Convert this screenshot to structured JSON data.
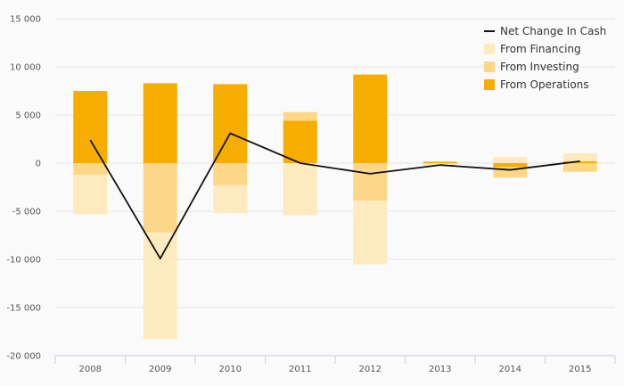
{
  "chart_data": {
    "type": "bar",
    "stacked": true,
    "categories": [
      "2008",
      "2009",
      "2010",
      "2011",
      "2012",
      "2013",
      "2014",
      "2015"
    ],
    "series": [
      {
        "name": "From Operations",
        "type": "bar",
        "color": "#f7ad00",
        "values": [
          7500,
          8300,
          8200,
          4400,
          9200,
          150,
          -400,
          200
        ]
      },
      {
        "name": "From Investing",
        "type": "bar",
        "color": "#fdd688",
        "values": [
          -1200,
          -7200,
          -2300,
          900,
          -3900,
          -50,
          -1100,
          -900
        ]
      },
      {
        "name": "From Financing",
        "type": "bar",
        "color": "#fdeabe",
        "values": [
          -4100,
          -11100,
          -2900,
          -5400,
          -6600,
          -250,
          650,
          800
        ]
      },
      {
        "name": "Net Change In Cash",
        "type": "line",
        "color": "#111111",
        "values": [
          2400,
          -9900,
          3100,
          0,
          -1100,
          -200,
          -700,
          200
        ]
      }
    ],
    "ylim": [
      -20000,
      15000
    ],
    "yticks": [
      15000,
      10000,
      5000,
      0,
      -5000,
      -10000,
      -15000,
      -20000
    ],
    "ytick_labels": [
      "15 000",
      "10 000",
      "5 000",
      "0",
      "-5 000",
      "-10 000",
      "-15 000",
      "-20 000"
    ],
    "legend_items": [
      "Net Change In Cash",
      "From Financing",
      "From Investing",
      "From Operations"
    ],
    "legend_position": "top-right",
    "grid": true
  }
}
